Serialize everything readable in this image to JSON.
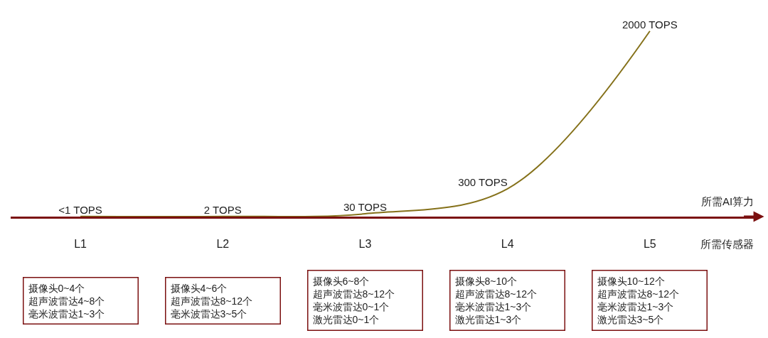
{
  "chart_data": {
    "type": "line",
    "categories": [
      "L1",
      "L2",
      "L3",
      "L4",
      "L5"
    ],
    "series": [
      {
        "color": "#85711a",
        "values": [
          1,
          2,
          30,
          300,
          2000
        ],
        "value_labels": [
          "<1 TOPS",
          "2 TOPS",
          "30 TOPS",
          "300 TOPS",
          "2000 TOPS"
        ]
      }
    ],
    "tick_labels": "x",
    "ylabel": "所需AI算力",
    "xlabel": "所需传感器",
    "annotations": [
      "摄像头0~4个超声波雷达4~8个毫米波雷达1~3个",
      "摄像头4~6个超声波雷达8~12个毫米波雷达3~5个",
      "摄像头6~8个超声波雷达8~12个毫米波雷达0~1个激光雷达0~1个",
      "摄像头8~10个超声波雷达8~12个毫米波雷达1~3个激光雷达1~3个",
      "摄像头10~12个超声波雷达8~12个毫米波雷达1~3个激光雷达3~5个"
    ],
    "grid": false,
    "marker": "none",
    "line_style": "solid"
  }
}
